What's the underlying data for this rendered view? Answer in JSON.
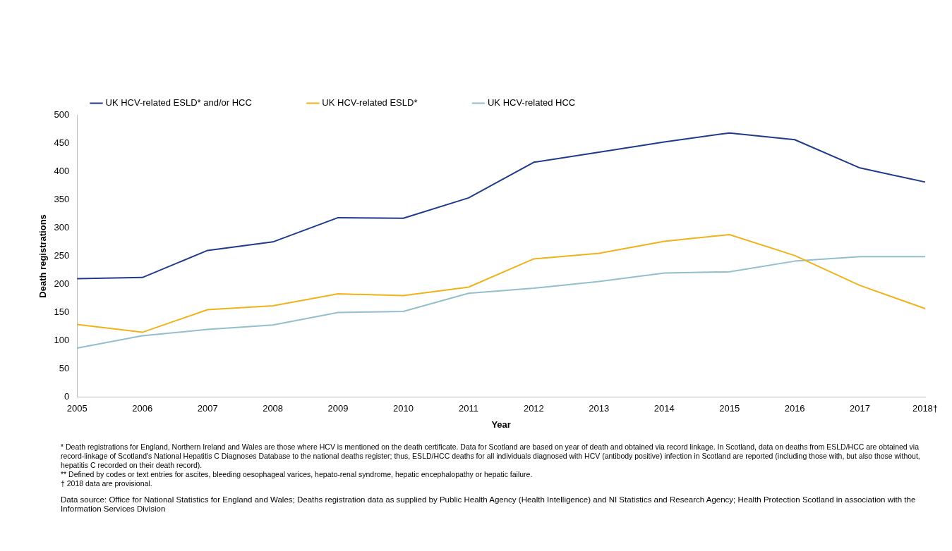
{
  "chart_data": {
    "type": "line",
    "xlabel": "Year",
    "ylabel": "Death registrations",
    "categories": [
      "2005",
      "2006",
      "2007",
      "2008",
      "2009",
      "2010",
      "2011",
      "2012",
      "2013",
      "2014",
      "2015",
      "2016",
      "2017",
      "2018†"
    ],
    "series": [
      {
        "name": "UK HCV-related ESLD* and/or HCC",
        "color": "#1f3a8a",
        "values": [
          210,
          212,
          260,
          275,
          318,
          317,
          353,
          416,
          434,
          452,
          468,
          456,
          406,
          381
        ]
      },
      {
        "name": "UK HCV-related ESLD*",
        "color": "#f0b21a",
        "values": [
          129,
          115,
          155,
          162,
          183,
          180,
          195,
          245,
          255,
          276,
          288,
          251,
          198,
          157
        ]
      },
      {
        "name": "UK HCV-related HCC",
        "color": "#93bfcc",
        "values": [
          87,
          109,
          120,
          128,
          150,
          152,
          184,
          193,
          205,
          220,
          222,
          241,
          249,
          249
        ]
      }
    ],
    "ylim": [
      0,
      500
    ],
    "yticks": [
      0,
      50,
      100,
      150,
      200,
      250,
      300,
      350,
      400,
      450,
      500
    ],
    "grid": false,
    "legend": "top",
    "marker": "none",
    "line_style": "solid",
    "annotations": [
      "* Death registrations for England, Northern Ireland and Wales are those where HCV is mentioned on the death certificate. Data for Scotland are based on year of death and obtained via record linkage. In Scotland, data on deaths from ESLD/HCC are obtained via record-linkage of Scotland's National Hepatitis C Diagnoses Database to the national deaths register; thus, ESLD/HCC deaths for all individuals diagnosed with HCV (antibody positive) infection in Scotland are reported (including those with, but also those without, hepatitis C recorded on their death record).",
      "** Defined by codes or text entries for ascites, bleeding oesophageal varices, hepato-renal syndrome, hepatic encephalopathy or hepatic failure.",
      "† 2018 data are provisional.",
      "Data source: Office for National Statistics for England and Wales; Deaths registration data as supplied by Public Health Agency (Health Intelligence) and NI Statistics and Research Agency; Health Protection Scotland in association with the Information Services Division"
    ]
  }
}
